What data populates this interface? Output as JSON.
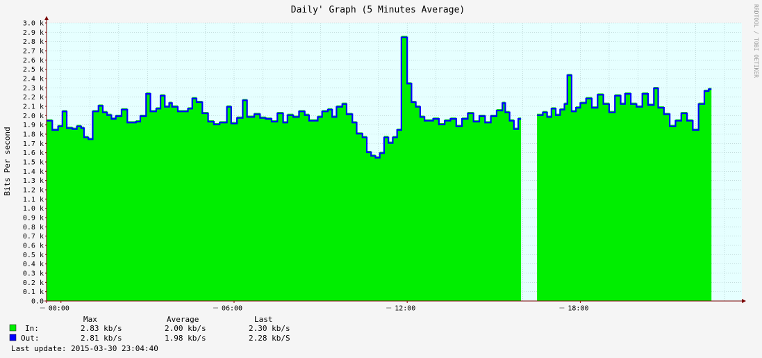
{
  "chart_data": {
    "type": "area",
    "title": "Daily' Graph (5 Minutes Average)",
    "ylabel": "Bits Per second",
    "side_label": "RRDTOOL / TOBI OETIKER",
    "ylim": [
      0,
      3000
    ],
    "y_ticks": [
      "0.0",
      "0.1 k",
      "0.2 k",
      "0.3 k",
      "0.4 k",
      "0.5 k",
      "0.6 k",
      "0.7 k",
      "0.8 k",
      "0.9 k",
      "1.0 k",
      "1.1 k",
      "1.2 k",
      "1.3 k",
      "1.4 k",
      "1.5 k",
      "1.6 k",
      "1.7 k",
      "1.8 k",
      "1.9 k",
      "2.0 k",
      "2.1 k",
      "2.2 k",
      "2.3 k",
      "2.4 k",
      "2.5 k",
      "2.6 k",
      "2.7 k",
      "2.8 k",
      "2.9 k",
      "3.0 k"
    ],
    "x_unit": "hours since 00:00",
    "xlim": [
      -0.5,
      23.6
    ],
    "x_ticks": [
      {
        "label": "00:00",
        "value": 0
      },
      {
        "label": "06:00",
        "value": 6
      },
      {
        "label": "12:00",
        "value": 12
      },
      {
        "label": "18:00",
        "value": 18
      }
    ],
    "grid": true,
    "series": [
      {
        "name": "In",
        "kind": "area",
        "color": "#00ee00",
        "points": [
          [
            -0.5,
            1960
          ],
          [
            -0.3,
            1860
          ],
          [
            -0.1,
            1900
          ],
          [
            0.05,
            2060
          ],
          [
            0.2,
            1880
          ],
          [
            0.4,
            1870
          ],
          [
            0.55,
            1900
          ],
          [
            0.7,
            1880
          ],
          [
            0.8,
            1780
          ],
          [
            0.95,
            1760
          ],
          [
            1.1,
            2060
          ],
          [
            1.3,
            2120
          ],
          [
            1.45,
            2050
          ],
          [
            1.6,
            2020
          ],
          [
            1.75,
            1980
          ],
          [
            1.9,
            2010
          ],
          [
            2.1,
            2080
          ],
          [
            2.3,
            1940
          ],
          [
            2.6,
            1950
          ],
          [
            2.75,
            2010
          ],
          [
            2.95,
            2250
          ],
          [
            3.1,
            2060
          ],
          [
            3.3,
            2090
          ],
          [
            3.45,
            2230
          ],
          [
            3.6,
            2110
          ],
          [
            3.75,
            2150
          ],
          [
            3.85,
            2110
          ],
          [
            4.05,
            2060
          ],
          [
            4.4,
            2090
          ],
          [
            4.55,
            2200
          ],
          [
            4.7,
            2160
          ],
          [
            4.9,
            2040
          ],
          [
            5.1,
            1950
          ],
          [
            5.3,
            1920
          ],
          [
            5.5,
            1940
          ],
          [
            5.75,
            2110
          ],
          [
            5.9,
            1930
          ],
          [
            6.1,
            1990
          ],
          [
            6.3,
            2180
          ],
          [
            6.45,
            2000
          ],
          [
            6.7,
            2030
          ],
          [
            6.9,
            1990
          ],
          [
            7.1,
            1980
          ],
          [
            7.3,
            1950
          ],
          [
            7.5,
            2040
          ],
          [
            7.7,
            1940
          ],
          [
            7.85,
            2020
          ],
          [
            8.05,
            2000
          ],
          [
            8.25,
            2060
          ],
          [
            8.45,
            2020
          ],
          [
            8.6,
            1960
          ],
          [
            8.9,
            2000
          ],
          [
            9.05,
            2060
          ],
          [
            9.25,
            2080
          ],
          [
            9.4,
            2000
          ],
          [
            9.55,
            2110
          ],
          [
            9.75,
            2140
          ],
          [
            9.9,
            2030
          ],
          [
            10.1,
            1940
          ],
          [
            10.25,
            1820
          ],
          [
            10.45,
            1780
          ],
          [
            10.6,
            1620
          ],
          [
            10.75,
            1580
          ],
          [
            10.9,
            1560
          ],
          [
            11.05,
            1610
          ],
          [
            11.2,
            1780
          ],
          [
            11.35,
            1720
          ],
          [
            11.5,
            1780
          ],
          [
            11.65,
            1860
          ],
          [
            11.8,
            2860
          ],
          [
            12.0,
            2360
          ],
          [
            12.15,
            2160
          ],
          [
            12.3,
            2110
          ],
          [
            12.45,
            2000
          ],
          [
            12.6,
            1960
          ],
          [
            12.75,
            1960
          ],
          [
            12.9,
            1980
          ],
          [
            13.1,
            1920
          ],
          [
            13.3,
            1960
          ],
          [
            13.5,
            1980
          ],
          [
            13.7,
            1900
          ],
          [
            13.9,
            1980
          ],
          [
            14.1,
            2040
          ],
          [
            14.3,
            1950
          ],
          [
            14.5,
            2010
          ],
          [
            14.7,
            1940
          ],
          [
            14.9,
            2010
          ],
          [
            15.1,
            2070
          ],
          [
            15.3,
            2150
          ],
          [
            15.4,
            2050
          ],
          [
            15.55,
            1960
          ],
          [
            15.7,
            1870
          ],
          [
            15.85,
            1980
          ]
        ],
        "gap": [
          15.85,
          16.5
        ],
        "points2": [
          [
            16.5,
            2020
          ],
          [
            16.7,
            2050
          ],
          [
            16.85,
            2000
          ],
          [
            17.0,
            2090
          ],
          [
            17.15,
            2020
          ],
          [
            17.3,
            2080
          ],
          [
            17.45,
            2140
          ],
          [
            17.55,
            2450
          ],
          [
            17.7,
            2060
          ],
          [
            17.85,
            2100
          ],
          [
            18.0,
            2150
          ],
          [
            18.2,
            2200
          ],
          [
            18.4,
            2100
          ],
          [
            18.6,
            2240
          ],
          [
            18.8,
            2140
          ],
          [
            19.0,
            2050
          ],
          [
            19.2,
            2230
          ],
          [
            19.4,
            2140
          ],
          [
            19.55,
            2250
          ],
          [
            19.75,
            2140
          ],
          [
            19.95,
            2110
          ],
          [
            20.15,
            2250
          ],
          [
            20.35,
            2130
          ],
          [
            20.55,
            2310
          ],
          [
            20.7,
            2100
          ],
          [
            20.9,
            2030
          ],
          [
            21.1,
            1900
          ],
          [
            21.3,
            1960
          ],
          [
            21.5,
            2040
          ],
          [
            21.7,
            1960
          ],
          [
            21.9,
            1860
          ],
          [
            22.1,
            2140
          ],
          [
            22.3,
            2280
          ],
          [
            22.45,
            2300
          ]
        ]
      },
      {
        "name": "Out",
        "kind": "line",
        "color": "#0000ff",
        "offset_note": "follows In closely, slightly lower"
      }
    ]
  },
  "legend": {
    "headers": {
      "max": "Max",
      "average": "Average",
      "last": "Last"
    },
    "rows": [
      {
        "label": "In:",
        "color": "#00ee00",
        "max": "2.83 kb/s",
        "average": "2.00 kb/s",
        "last": "2.30 kb/s"
      },
      {
        "label": "Out:",
        "color": "#0000ff",
        "max": "2.81 kb/s",
        "average": "1.98 kb/s",
        "last": "2.28 kb/S"
      }
    ],
    "last_update": "Last update: 2015-03-30 23:04:40"
  },
  "colors": {
    "background": "#f5f5f5",
    "plot": "#e6ffff",
    "grid": "#aac8c8",
    "axis": "#7a0000"
  }
}
